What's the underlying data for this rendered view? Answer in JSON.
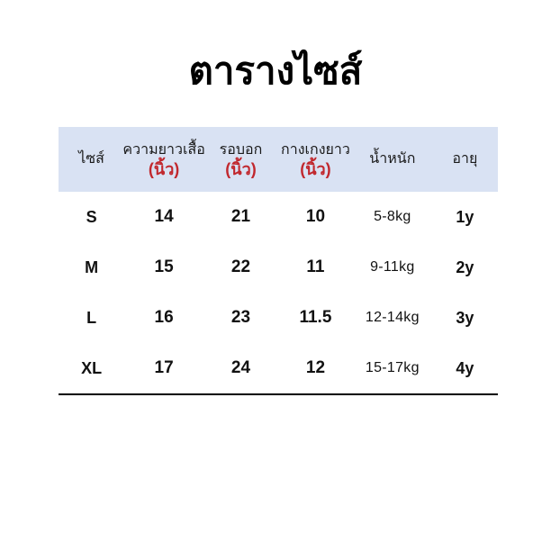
{
  "page": {
    "title": "ตารางไซส์",
    "background_color": "#ffffff"
  },
  "table": {
    "header_background_color": "#d9e2f3",
    "unit_text_color": "#c1272d",
    "bottom_rule_color": "#000000",
    "columns": [
      {
        "key": "size",
        "label": "ไซส์",
        "unit": ""
      },
      {
        "key": "shirt_length",
        "label": "ความยาวเสื้อ",
        "unit": "(นิ้ว)"
      },
      {
        "key": "chest",
        "label": "รอบอก",
        "unit": "(นิ้ว)"
      },
      {
        "key": "pants_length",
        "label": "กางเกงยาว",
        "unit": "(นิ้ว)"
      },
      {
        "key": "weight",
        "label": "น้ำหนัก",
        "unit": ""
      },
      {
        "key": "age",
        "label": "อายุ",
        "unit": ""
      }
    ],
    "rows": [
      {
        "size": "S",
        "shirt_length": "14",
        "chest": "21",
        "pants_length": "10",
        "weight": "5-8kg",
        "age": "1y"
      },
      {
        "size": "M",
        "shirt_length": "15",
        "chest": "22",
        "pants_length": "11",
        "weight": "9-11kg",
        "age": "2y"
      },
      {
        "size": "L",
        "shirt_length": "16",
        "chest": "23",
        "pants_length": "11.5",
        "weight": "12-14kg",
        "age": "3y"
      },
      {
        "size": "XL",
        "shirt_length": "17",
        "chest": "24",
        "pants_length": "12",
        "weight": "15-17kg",
        "age": "4y"
      }
    ]
  }
}
